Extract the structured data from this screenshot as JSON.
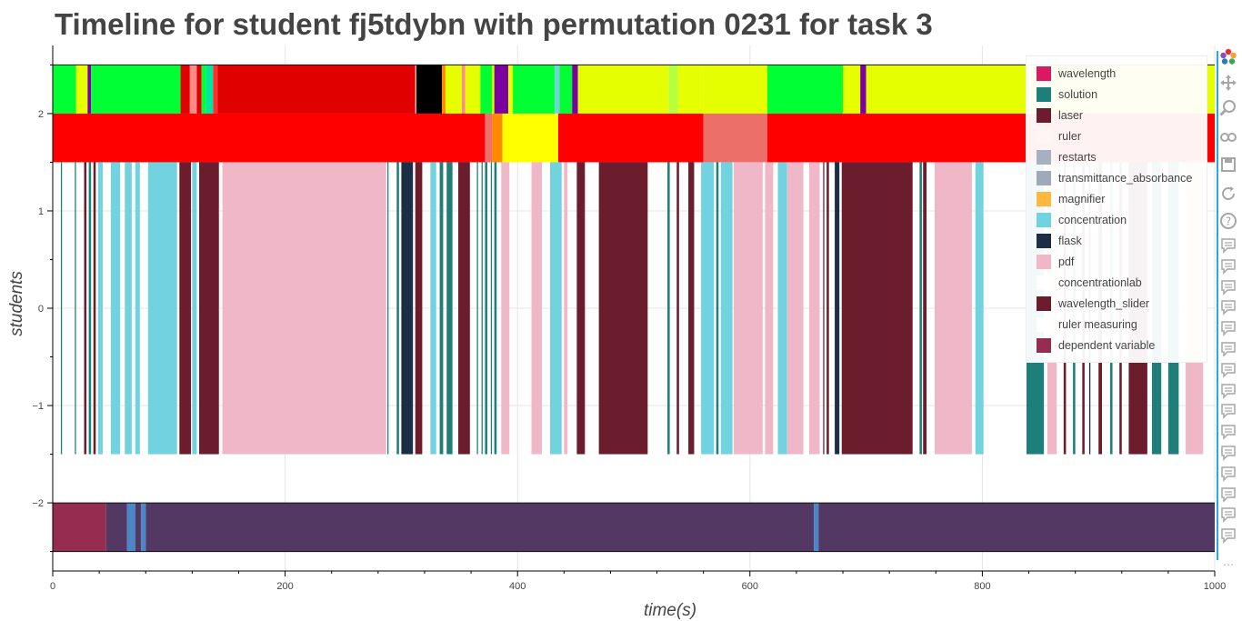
{
  "title": "Timeline for student fj5tdybn with permutation 0231 for task 3",
  "chart_data": {
    "type": "bar",
    "orientation": "horizontal-timeline",
    "xlabel": "time(s)",
    "ylabel": "students",
    "xlim": [
      0,
      1000
    ],
    "ylim": [
      -2.7,
      2.7
    ],
    "x_ticks": [
      0,
      200,
      400,
      600,
      800,
      1000
    ],
    "y_ticks": [
      -2,
      -1,
      0,
      1,
      2
    ],
    "x_tick_labels": [
      "0",
      "200",
      "400",
      "600",
      "800",
      "1000"
    ],
    "y_tick_labels": [
      "−2",
      "−1",
      "0",
      "1",
      "2"
    ],
    "grid": true,
    "legend_position": "top-right",
    "legend": [
      {
        "label": "wavelength",
        "color": "#d81b60"
      },
      {
        "label": "solution",
        "color": "#1e7e7a"
      },
      {
        "label": "laser",
        "color": "#6b1d2e"
      },
      {
        "label": "ruler",
        "color": "#fff5f5"
      },
      {
        "label": "restarts",
        "color": "#a7b0c0"
      },
      {
        "label": "transmittance_absorbance",
        "color": "#9fa9ba"
      },
      {
        "label": "magnifier",
        "color": "#ffb83f"
      },
      {
        "label": "concentration",
        "color": "#72d3e0"
      },
      {
        "label": "flask",
        "color": "#1c2e45"
      },
      {
        "label": "pdf",
        "color": "#f0b7c9"
      },
      {
        "label": "concentrationlab",
        "color": "#ffffff"
      },
      {
        "label": "wavelength_slider",
        "color": "#6b1d2e"
      },
      {
        "label": "ruler measuring",
        "color": "#ffffff"
      },
      {
        "label": "dependent variable",
        "color": "#952d50"
      }
    ],
    "rows": [
      {
        "y_range": [
          2.0,
          2.5
        ],
        "segments": [
          {
            "start": 0,
            "end": 20,
            "color": "#00ff33"
          },
          {
            "start": 20,
            "end": 30,
            "color": "#e6ff00"
          },
          {
            "start": 30,
            "end": 33,
            "color": "#7a00a0"
          },
          {
            "start": 33,
            "end": 110,
            "color": "#00ff33"
          },
          {
            "start": 110,
            "end": 118,
            "color": "#e00000"
          },
          {
            "start": 118,
            "end": 124,
            "color": "#ff8a8a"
          },
          {
            "start": 124,
            "end": 128,
            "color": "#e00000"
          },
          {
            "start": 128,
            "end": 132,
            "color": "#00ff33"
          },
          {
            "start": 132,
            "end": 138,
            "color": "#00e5a0"
          },
          {
            "start": 138,
            "end": 142,
            "color": "#ff2d2d"
          },
          {
            "start": 142,
            "end": 312,
            "color": "#e00000"
          },
          {
            "start": 312,
            "end": 313,
            "color": "#ffaaaa"
          },
          {
            "start": 313,
            "end": 335,
            "color": "#000000"
          },
          {
            "start": 335,
            "end": 338,
            "color": "#ff8a00"
          },
          {
            "start": 338,
            "end": 352,
            "color": "#e6ff00"
          },
          {
            "start": 352,
            "end": 355,
            "color": "#ff8a8a"
          },
          {
            "start": 355,
            "end": 368,
            "color": "#e6ff00"
          },
          {
            "start": 368,
            "end": 378,
            "color": "#00ff33"
          },
          {
            "start": 378,
            "end": 380,
            "color": "#e6ff00"
          },
          {
            "start": 380,
            "end": 392,
            "color": "#7a00a0"
          },
          {
            "start": 392,
            "end": 396,
            "color": "#e6ff00"
          },
          {
            "start": 396,
            "end": 432,
            "color": "#00ff33"
          },
          {
            "start": 432,
            "end": 436,
            "color": "#72d3e0"
          },
          {
            "start": 436,
            "end": 447,
            "color": "#00ff33"
          },
          {
            "start": 447,
            "end": 452,
            "color": "#7a00a0"
          },
          {
            "start": 452,
            "end": 530,
            "color": "#e6ff00"
          },
          {
            "start": 530,
            "end": 538,
            "color": "#b5ff40"
          },
          {
            "start": 538,
            "end": 560,
            "color": "#e6ff00"
          },
          {
            "start": 560,
            "end": 615,
            "color": "#e6ff00"
          },
          {
            "start": 615,
            "end": 680,
            "color": "#00ff33"
          },
          {
            "start": 680,
            "end": 695,
            "color": "#e6ff00"
          },
          {
            "start": 695,
            "end": 700,
            "color": "#7a00a0"
          },
          {
            "start": 700,
            "end": 750,
            "color": "#e6ff00"
          },
          {
            "start": 750,
            "end": 1000,
            "color": "#e6ff00"
          }
        ]
      },
      {
        "y_range": [
          1.5,
          2.0
        ],
        "segments": [
          {
            "start": 0,
            "end": 372,
            "color": "#ff0000"
          },
          {
            "start": 372,
            "end": 378,
            "color": "#f07070"
          },
          {
            "start": 378,
            "end": 387,
            "color": "#ff8a00"
          },
          {
            "start": 387,
            "end": 435,
            "color": "#ffff00"
          },
          {
            "start": 435,
            "end": 560,
            "color": "#ff0000"
          },
          {
            "start": 560,
            "end": 615,
            "color": "#ed6f6a"
          },
          {
            "start": 615,
            "end": 1000,
            "color": "#ff0000"
          }
        ]
      },
      {
        "y_range": [
          -1.5,
          1.5
        ],
        "segments": [
          {
            "start": 7,
            "end": 8,
            "color": "#1e7e7a"
          },
          {
            "start": 19,
            "end": 20,
            "color": "#1e7e7a"
          },
          {
            "start": 27,
            "end": 29,
            "color": "#6b1d2e"
          },
          {
            "start": 31,
            "end": 33,
            "color": "#1e7e7a"
          },
          {
            "start": 35,
            "end": 37,
            "color": "#6b1d2e"
          },
          {
            "start": 39,
            "end": 43,
            "color": "#72d3e0"
          },
          {
            "start": 50,
            "end": 58,
            "color": "#72d3e0"
          },
          {
            "start": 62,
            "end": 68,
            "color": "#72d3e0"
          },
          {
            "start": 71,
            "end": 75,
            "color": "#72d3e0"
          },
          {
            "start": 82,
            "end": 107,
            "color": "#72d3e0"
          },
          {
            "start": 109,
            "end": 119,
            "color": "#6b1d2e"
          },
          {
            "start": 120,
            "end": 124,
            "color": "#72d3e0"
          },
          {
            "start": 124,
            "end": 126,
            "color": "#ffffff"
          },
          {
            "start": 126,
            "end": 143,
            "color": "#6b1d2e"
          },
          {
            "start": 146,
            "end": 287,
            "color": "#f0b7c9"
          },
          {
            "start": 288,
            "end": 289,
            "color": "#1e7e7a"
          },
          {
            "start": 296,
            "end": 298,
            "color": "#1e7e7a"
          },
          {
            "start": 300,
            "end": 310,
            "color": "#1c2e45"
          },
          {
            "start": 312,
            "end": 318,
            "color": "#6b1d2e"
          },
          {
            "start": 325,
            "end": 330,
            "color": "#72d3e0"
          },
          {
            "start": 333,
            "end": 336,
            "color": "#1e7e7a"
          },
          {
            "start": 339,
            "end": 344,
            "color": "#1e7e7a"
          },
          {
            "start": 349,
            "end": 359,
            "color": "#6b1d2e"
          },
          {
            "start": 365,
            "end": 366,
            "color": "#1e7e7a"
          },
          {
            "start": 369,
            "end": 370,
            "color": "#1e7e7a"
          },
          {
            "start": 372,
            "end": 374,
            "color": "#1e7e7a"
          },
          {
            "start": 377,
            "end": 378,
            "color": "#1e7e7a"
          },
          {
            "start": 380,
            "end": 382,
            "color": "#1e7e7a"
          },
          {
            "start": 386,
            "end": 393,
            "color": "#f0b7c9"
          },
          {
            "start": 412,
            "end": 421,
            "color": "#f0b7c9"
          },
          {
            "start": 428,
            "end": 438,
            "color": "#72d3e0"
          },
          {
            "start": 440,
            "end": 443,
            "color": "#f0b7c9"
          },
          {
            "start": 451,
            "end": 458,
            "color": "#6b1d2e"
          },
          {
            "start": 470,
            "end": 512,
            "color": "#6b1d2e"
          },
          {
            "start": 529,
            "end": 531,
            "color": "#1e7e7a"
          },
          {
            "start": 537,
            "end": 539,
            "color": "#6b1d2e"
          },
          {
            "start": 547,
            "end": 552,
            "color": "#6b1d2e"
          },
          {
            "start": 558,
            "end": 569,
            "color": "#72d3e0"
          },
          {
            "start": 571,
            "end": 573,
            "color": "#1e7e7a"
          },
          {
            "start": 575,
            "end": 585,
            "color": "#72d3e0"
          },
          {
            "start": 586,
            "end": 611,
            "color": "#f0b7c9"
          },
          {
            "start": 613,
            "end": 620,
            "color": "#f0b7c9"
          },
          {
            "start": 624,
            "end": 632,
            "color": "#72d3e0"
          },
          {
            "start": 632,
            "end": 646,
            "color": "#f0b7c9"
          },
          {
            "start": 651,
            "end": 660,
            "color": "#f0b7c9"
          },
          {
            "start": 663,
            "end": 664,
            "color": "#6b1d2e"
          },
          {
            "start": 666,
            "end": 668,
            "color": "#6b1d2e"
          },
          {
            "start": 673,
            "end": 677,
            "color": "#1c2e45"
          },
          {
            "start": 679,
            "end": 740,
            "color": "#6b1d2e"
          },
          {
            "start": 746,
            "end": 748,
            "color": "#1e7e7a"
          },
          {
            "start": 749,
            "end": 752,
            "color": "#6b1d2e"
          },
          {
            "start": 759,
            "end": 791,
            "color": "#f0b7c9"
          },
          {
            "start": 794,
            "end": 801,
            "color": "#72d3e0"
          },
          {
            "start": 838,
            "end": 853,
            "color": "#1e7e7a"
          },
          {
            "start": 856,
            "end": 864,
            "color": "#f0b7c9"
          },
          {
            "start": 870,
            "end": 872,
            "color": "#6b1d2e"
          },
          {
            "start": 878,
            "end": 880,
            "color": "#1e7e7a"
          },
          {
            "start": 886,
            "end": 888,
            "color": "#6b1d2e"
          },
          {
            "start": 892,
            "end": 893,
            "color": "#1c2e45"
          },
          {
            "start": 900,
            "end": 903,
            "color": "#6b1d2e"
          },
          {
            "start": 910,
            "end": 912,
            "color": "#1e7e7a"
          },
          {
            "start": 918,
            "end": 920,
            "color": "#6b1d2e"
          },
          {
            "start": 926,
            "end": 942,
            "color": "#6b1d2e"
          },
          {
            "start": 946,
            "end": 954,
            "color": "#1e7e7a"
          },
          {
            "start": 960,
            "end": 969,
            "color": "#1e7e7a"
          },
          {
            "start": 975,
            "end": 990,
            "color": "#f0b7c9"
          }
        ]
      },
      {
        "y_range": [
          -2.5,
          -2.0
        ],
        "segments": [
          {
            "start": 0,
            "end": 46,
            "color": "#952d50"
          },
          {
            "start": 46,
            "end": 64,
            "color": "#523862"
          },
          {
            "start": 64,
            "end": 71,
            "color": "#4a86c8"
          },
          {
            "start": 71,
            "end": 76,
            "color": "#523862"
          },
          {
            "start": 76,
            "end": 80,
            "color": "#4a86c8"
          },
          {
            "start": 80,
            "end": 655,
            "color": "#523862"
          },
          {
            "start": 655,
            "end": 659,
            "color": "#4a86c8"
          },
          {
            "start": 659,
            "end": 1000,
            "color": "#523862"
          }
        ]
      }
    ]
  },
  "toolbar": {
    "tools": [
      {
        "name": "bokeh-logo-icon"
      },
      {
        "name": "pan-icon"
      },
      {
        "name": "box-zoom-icon"
      },
      {
        "name": "wheel-zoom-icon"
      },
      {
        "name": "save-icon"
      },
      {
        "name": "reset-icon"
      },
      {
        "name": "help-icon"
      },
      {
        "name": "hover-icon"
      }
    ]
  }
}
